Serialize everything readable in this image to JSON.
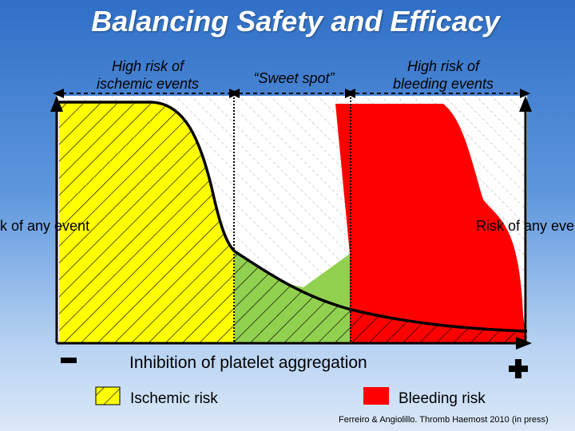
{
  "title": "Balancing Safety and Efficacy",
  "regions": {
    "ischemic": "High risk of\nischemic events",
    "sweet_spot": "“Sweet spot”",
    "bleeding": "High risk of\nbleeding events"
  },
  "side_labels": {
    "left": "Risk of any event",
    "right": "Risk of any event"
  },
  "axis_label": "Inhibition of platelet aggregation",
  "legend": {
    "ischemic": "Ischemic risk",
    "bleeding": "Bleeding risk"
  },
  "citation": "Ferreiro & Angiolillo. Thromb Haemost 2010 (in press)",
  "colors": {
    "ischemic": "#ffff00",
    "bleeding": "#ff0000",
    "sweet_spot": "#92d050",
    "background": "#5f97de"
  }
}
